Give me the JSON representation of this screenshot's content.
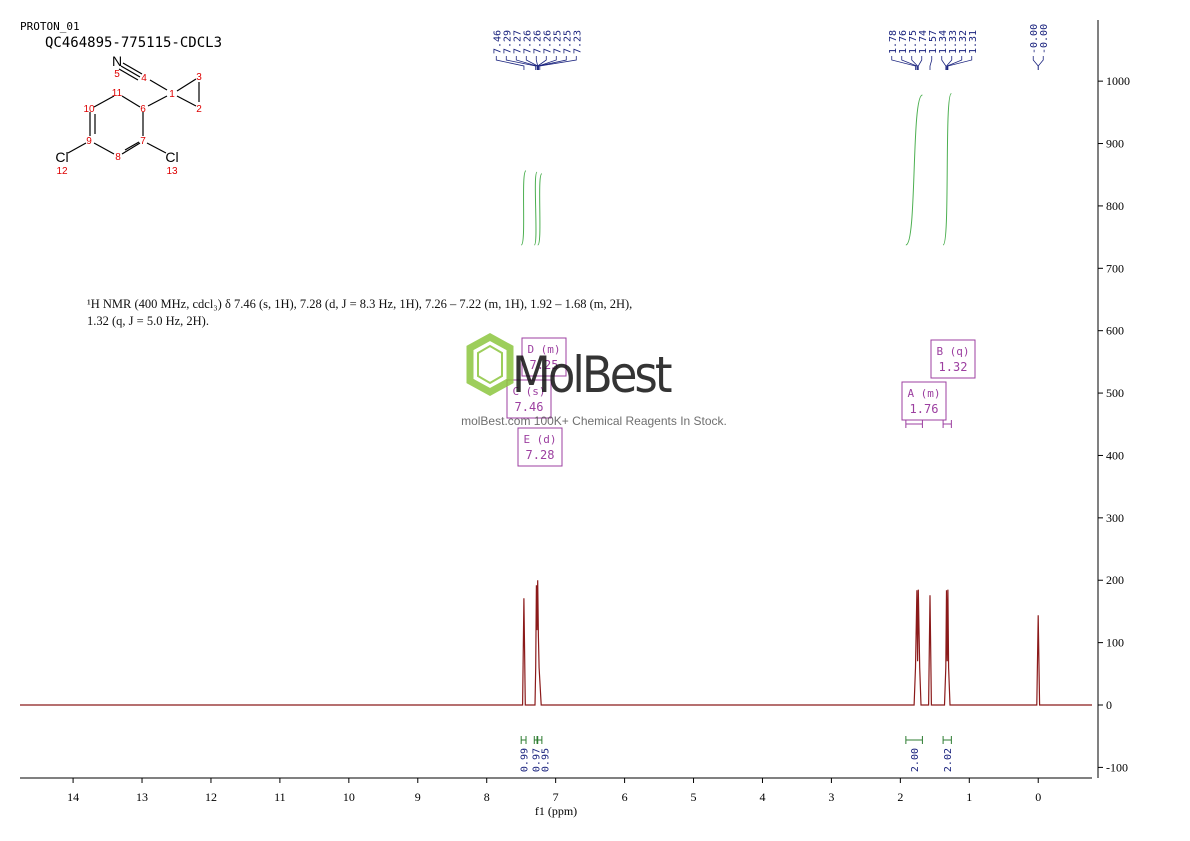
{
  "header": {
    "experiment": "PROTON_01",
    "sample": "QC464895-775115-CDCL3"
  },
  "structure": {
    "atom_labels": [
      "N",
      "Cl",
      "Cl"
    ],
    "atom_numbers": [
      "5",
      "4",
      "1",
      "3",
      "2",
      "11",
      "6",
      "10",
      "9",
      "7",
      "8",
      "12",
      "13"
    ]
  },
  "description": "¹H NMR (400 MHz, cdcl₃) δ 7.46 (s, 1H), 7.28 (d, J = 8.3 Hz, 1H), 7.26 – 7.22 (m, 1H), 1.92 – 1.68 (m, 2H), 1.32 (q, J = 5.0 Hz, 2H).",
  "watermark": {
    "brand": "MolBest",
    "tagline": "molBest.com 100K+ Chemical Reagents In Stock."
  },
  "chart_data": {
    "type": "line",
    "x_label": "f1 (ppm)",
    "color": "#8b1a1a",
    "x": [
      14.77,
      7.48,
      7.46,
      7.44,
      7.3,
      7.29,
      7.28,
      7.27,
      7.26,
      7.25,
      7.24,
      7.23,
      7.21,
      1.8,
      1.78,
      1.76,
      1.75,
      1.74,
      1.72,
      1.7,
      1.59,
      1.57,
      1.55,
      1.36,
      1.34,
      1.33,
      1.32,
      1.31,
      1.3,
      1.28,
      0.02,
      0.0,
      -0.02,
      -0.78
    ],
    "values": [
      0,
      0,
      171,
      0,
      0,
      60,
      192,
      120,
      200,
      110,
      60,
      40,
      0,
      0,
      60,
      184,
      70,
      185,
      60,
      0,
      0,
      176,
      0,
      0,
      60,
      184,
      70,
      185,
      60,
      0,
      0,
      144,
      0,
      0
    ],
    "xlim": [
      14.77,
      -0.78
    ],
    "xticks": [
      14,
      13,
      12,
      11,
      10,
      9,
      8,
      7,
      6,
      5,
      4,
      3,
      2,
      1,
      0
    ],
    "ylim": [
      -117,
      1098
    ],
    "yticks": [
      -100,
      0,
      100,
      200,
      300,
      400,
      500,
      600,
      700,
      800,
      900,
      1000
    ],
    "peak_labels": [
      "7.46",
      "7.29",
      "7.27",
      "7.26",
      "7.26",
      "7.26",
      "7.25",
      "7.25",
      "7.23",
      "1.78",
      "1.76",
      "1.75",
      "1.74",
      "1.57",
      "1.34",
      "1.33",
      "1.32",
      "1.31",
      "-0.00",
      "-0.00"
    ],
    "integrals": {
      "ranges": [
        [
          7.5,
          7.43
        ],
        [
          7.31,
          7.27
        ],
        [
          7.26,
          7.2
        ],
        [
          1.92,
          1.68
        ],
        [
          1.38,
          1.26
        ]
      ],
      "values": [
        0.99,
        0.97,
        0.95,
        2.0,
        2.02
      ],
      "value_labels": [
        "0.99",
        "0.97",
        "0.95",
        "2.00",
        "2.02"
      ]
    },
    "multiplets": [
      {
        "label": "A (m)",
        "shift": "1.76"
      },
      {
        "label": "B (q)",
        "shift": "1.32"
      },
      {
        "label": "C (s)",
        "shift": "7.46"
      },
      {
        "label": "D (m)",
        "shift": "7.25"
      },
      {
        "label": "E (d)",
        "shift": "7.28"
      }
    ]
  }
}
